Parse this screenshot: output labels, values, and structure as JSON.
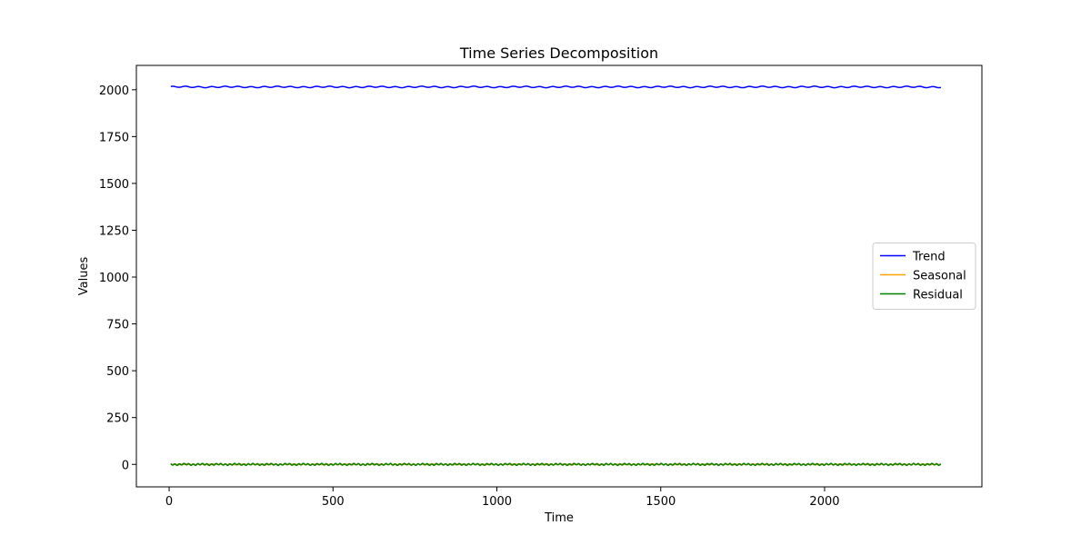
{
  "chart_data": {
    "type": "line",
    "title": "Time Series Decomposition",
    "xlabel": "Time",
    "ylabel": "Values",
    "xlim": [
      -100,
      2480
    ],
    "ylim": [
      -120,
      2130
    ],
    "xticks": [
      0,
      500,
      1000,
      1500,
      2000
    ],
    "yticks": [
      0,
      250,
      500,
      750,
      1000,
      1250,
      1500,
      1750,
      2000
    ],
    "grid": false,
    "legend_position": "center-right",
    "x_range": [
      5,
      2355
    ],
    "series": [
      {
        "name": "Trend",
        "color": "#0000ff",
        "base": 2015,
        "amplitude": 3,
        "period": 40
      },
      {
        "name": "Seasonal",
        "color": "#ffa500",
        "base": 0,
        "amplitude": 1.5,
        "period": 12
      },
      {
        "name": "Residual",
        "color": "#008000",
        "base": 0,
        "amplitude": 4,
        "period": 14
      }
    ]
  }
}
